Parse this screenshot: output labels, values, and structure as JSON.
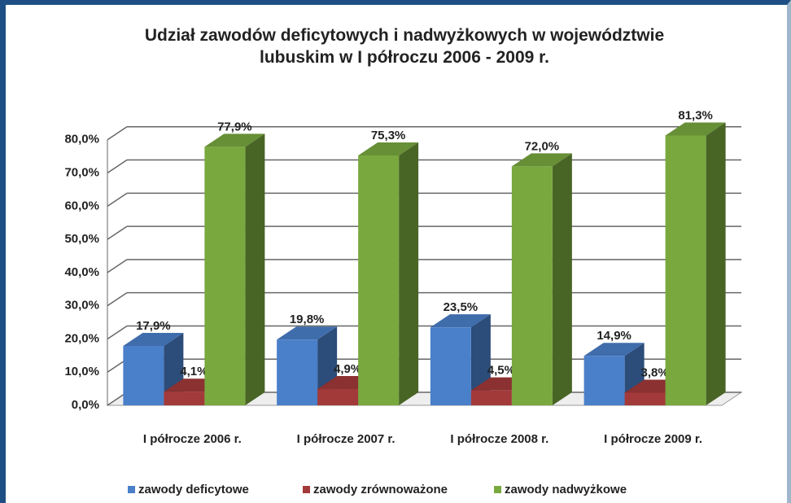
{
  "chart_data": {
    "type": "bar3d",
    "title": "Udział zawodów deficytowych i nadwyżkowych w województwie lubuskim w I półroczu 2006 - 2009 r.",
    "categories": [
      "I półrocze 2006 r.",
      "I półrocze 2007 r.",
      "I półrocze 2008 r.",
      "I półrocze 2009 r."
    ],
    "series": [
      {
        "name": "zawody deficytowe",
        "color": "#4a7fc9",
        "values": [
          17.9,
          19.8,
          23.5,
          14.9
        ],
        "value_labels": [
          "17,9%",
          "19,8%",
          "23,5%",
          "14,9%"
        ]
      },
      {
        "name": "zawody zrównoważone",
        "color": "#a33a3a",
        "values": [
          4.1,
          4.9,
          4.5,
          3.8
        ],
        "value_labels": [
          "4,1%",
          "4,9%",
          "4,5%",
          "3,8%"
        ]
      },
      {
        "name": "zawody nadwyżkowe",
        "color": "#79a83f",
        "values": [
          77.9,
          75.3,
          72.0,
          81.3
        ],
        "value_labels": [
          "77,9%",
          "75,3%",
          "72,0%",
          "81,3%"
        ]
      }
    ],
    "ylim": [
      0,
      90
    ],
    "yticks": [
      {
        "value": 0,
        "label": "0,0%"
      },
      {
        "value": 10,
        "label": "10,0%"
      },
      {
        "value": 20,
        "label": "20,0%"
      },
      {
        "value": 30,
        "label": "30,0%"
      },
      {
        "value": 40,
        "label": "40,0%"
      },
      {
        "value": 50,
        "label": "50,0%"
      },
      {
        "value": 60,
        "label": "60,0%"
      },
      {
        "value": 70,
        "label": "70,0%"
      },
      {
        "value": 80,
        "label": "80,0%"
      }
    ],
    "grid": true
  }
}
